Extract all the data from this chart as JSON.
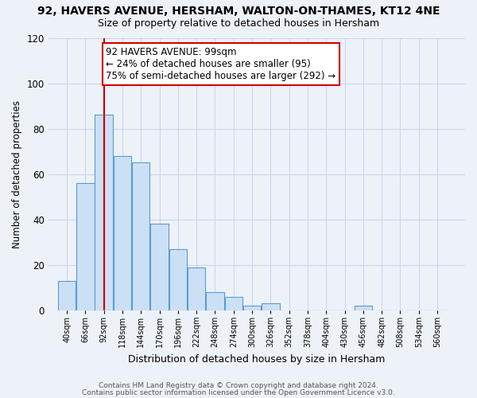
{
  "title1": "92, HAVERS AVENUE, HERSHAM, WALTON-ON-THAMES, KT12 4NE",
  "title2": "Size of property relative to detached houses in Hersham",
  "xlabel": "Distribution of detached houses by size in Hersham",
  "ylabel": "Number of detached properties",
  "bar_values": [
    13,
    56,
    86,
    68,
    65,
    38,
    27,
    19,
    8,
    6,
    2,
    3,
    0,
    0,
    0,
    0,
    2,
    0,
    0,
    0,
    0
  ],
  "bin_labels": [
    "40sqm",
    "66sqm",
    "92sqm",
    "118sqm",
    "144sqm",
    "170sqm",
    "196sqm",
    "222sqm",
    "248sqm",
    "274sqm",
    "300sqm",
    "326sqm",
    "352sqm",
    "378sqm",
    "404sqm",
    "430sqm",
    "456sqm",
    "482sqm",
    "508sqm",
    "534sqm",
    "560sqm"
  ],
  "bin_edges": [
    27,
    53,
    79,
    105,
    131,
    157,
    183,
    209,
    235,
    261,
    287,
    313,
    339,
    365,
    391,
    417,
    443,
    469,
    495,
    521,
    547
  ],
  "bin_width": 26,
  "bar_color": "#cce0f5",
  "bar_edge_color": "#5b9bd5",
  "vline_x": 92,
  "vline_color": "#cc0000",
  "annotation_text": "92 HAVERS AVENUE: 99sqm\n← 24% of detached houses are smaller (95)\n75% of semi-detached houses are larger (292) →",
  "annotation_box_edge": "#cc0000",
  "annotation_fontsize": 8.5,
  "ylim": [
    0,
    120
  ],
  "yticks": [
    0,
    20,
    40,
    60,
    80,
    100,
    120
  ],
  "grid_color": "#ccd5e8",
  "footer1": "Contains HM Land Registry data © Crown copyright and database right 2024.",
  "footer2": "Contains public sector information licensed under the Open Government Licence v3.0.",
  "title1_fontsize": 10,
  "title2_fontsize": 9,
  "bg_color": "#edf2f9"
}
